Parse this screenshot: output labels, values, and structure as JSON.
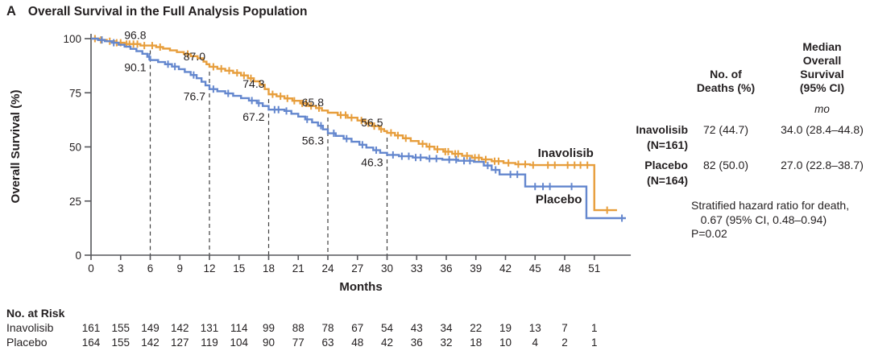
{
  "title": {
    "panel": "A",
    "text": "Overall Survival in the Full Analysis Population"
  },
  "chart_data": {
    "type": "line",
    "subtype": "kaplan-meier-step",
    "xlabel": "Months",
    "ylabel": "Overall Survival (%)",
    "xlim": [
      0,
      54.7
    ],
    "ylim": [
      0,
      100
    ],
    "xticks": [
      0,
      3,
      6,
      9,
      12,
      15,
      18,
      21,
      24,
      27,
      30,
      33,
      36,
      39,
      42,
      45,
      48,
      51
    ],
    "yticks": [
      0,
      25,
      50,
      75,
      100
    ],
    "grid": false,
    "dashed_line_color": "#3f3f3f",
    "axis_color": "#55565a",
    "milestones": [
      {
        "month": 6,
        "inavolisib": "96.8",
        "placebo": "90.1"
      },
      {
        "month": 12,
        "inavolisib": "87.0",
        "placebo": "76.7"
      },
      {
        "month": 18,
        "inavolisib": "74.3",
        "placebo": "67.2"
      },
      {
        "month": 24,
        "inavolisib": "65.8",
        "placebo": "56.3"
      },
      {
        "month": 30,
        "inavolisib": "56.5",
        "placebo": "46.3"
      }
    ],
    "series": [
      {
        "name": "Inavolisib",
        "color": "#e79e3c",
        "steps": [
          [
            0,
            100
          ],
          [
            0.8,
            99.4
          ],
          [
            1.6,
            98.8
          ],
          [
            2.4,
            98.1
          ],
          [
            3.4,
            97.5
          ],
          [
            5,
            96.8
          ],
          [
            6.6,
            96.1
          ],
          [
            7.3,
            95.4
          ],
          [
            8,
            94.6
          ],
          [
            8.7,
            93.8
          ],
          [
            9.4,
            92.9
          ],
          [
            10.1,
            91.9
          ],
          [
            10.8,
            90.9
          ],
          [
            11.4,
            89.4
          ],
          [
            11.7,
            88.2
          ],
          [
            12,
            87
          ],
          [
            12.8,
            86.1
          ],
          [
            13.6,
            85.2
          ],
          [
            14.4,
            84.2
          ],
          [
            15.2,
            83
          ],
          [
            15.9,
            81.7
          ],
          [
            16.5,
            80.3
          ],
          [
            17.1,
            78.7
          ],
          [
            17.6,
            76.7
          ],
          [
            18,
            74.3
          ],
          [
            18.8,
            73.4
          ],
          [
            19.6,
            72.4
          ],
          [
            20.4,
            71.3
          ],
          [
            21.2,
            70.1
          ],
          [
            22,
            68.9
          ],
          [
            22.8,
            67.9
          ],
          [
            23.4,
            66.8
          ],
          [
            24,
            65.8
          ],
          [
            25,
            64.7
          ],
          [
            26,
            63.5
          ],
          [
            27,
            62.2
          ],
          [
            27.8,
            60.9
          ],
          [
            28.5,
            59.6
          ],
          [
            29.2,
            58.2
          ],
          [
            29.7,
            57.3
          ],
          [
            30,
            56.5
          ],
          [
            30.8,
            55.3
          ],
          [
            31.6,
            54
          ],
          [
            32.4,
            52.7
          ],
          [
            33.2,
            51.4
          ],
          [
            34,
            50.1
          ],
          [
            34.8,
            48.9
          ],
          [
            35.7,
            47.8
          ],
          [
            36.6,
            46.8
          ],
          [
            37.6,
            45.9
          ],
          [
            38.6,
            45
          ],
          [
            39.6,
            44.2
          ],
          [
            40.6,
            43.4
          ],
          [
            41.8,
            42.6
          ],
          [
            43,
            42
          ],
          [
            44.5,
            41.6
          ],
          [
            51,
            20.8
          ],
          [
            53.3,
            20.8
          ]
        ],
        "censors": [
          0.4,
          1,
          1.9,
          2.6,
          3,
          3.6,
          3.9,
          4.3,
          4.7,
          5.4,
          6.2,
          7,
          9.8,
          12.4,
          13.2,
          14,
          14.8,
          15.5,
          16.2,
          18.4,
          19.2,
          19.9,
          20.6,
          21.4,
          21.8,
          22.3,
          23.1,
          25.3,
          25.8,
          26.4,
          27.4,
          28.1,
          28.7,
          29.4,
          30.4,
          31.1,
          31.9,
          33.6,
          34.3,
          35.1,
          35.9,
          36.2,
          36.9,
          37.2,
          38.1,
          38.9,
          39.3,
          40,
          40.9,
          41.3,
          42.3,
          43.3,
          44,
          44.8,
          46.3,
          47,
          48.3,
          49,
          49.6,
          50.3,
          52.3
        ]
      },
      {
        "name": "Placebo",
        "color": "#6487ce",
        "steps": [
          [
            0,
            100
          ],
          [
            0.7,
            99.4
          ],
          [
            1.4,
            98.8
          ],
          [
            2.1,
            98.1
          ],
          [
            2.8,
            97.2
          ],
          [
            3.4,
            96.3
          ],
          [
            4,
            95.3
          ],
          [
            4.6,
            94.2
          ],
          [
            5.2,
            93
          ],
          [
            5.7,
            91.6
          ],
          [
            6,
            90.1
          ],
          [
            6.8,
            89.2
          ],
          [
            7.5,
            88.2
          ],
          [
            8.2,
            87.1
          ],
          [
            8.9,
            85.9
          ],
          [
            9.5,
            84.6
          ],
          [
            10.1,
            83.2
          ],
          [
            10.7,
            81.7
          ],
          [
            11.2,
            80.1
          ],
          [
            11.6,
            78.4
          ],
          [
            12,
            76.7
          ],
          [
            12.8,
            75.7
          ],
          [
            13.6,
            74.7
          ],
          [
            14.4,
            73.6
          ],
          [
            15.2,
            72.5
          ],
          [
            16,
            71.4
          ],
          [
            16.8,
            70.2
          ],
          [
            17.4,
            68.9
          ],
          [
            18,
            67.2
          ],
          [
            19.6,
            66.6
          ],
          [
            20.3,
            65.3
          ],
          [
            21,
            64
          ],
          [
            21.7,
            62.7
          ],
          [
            22.4,
            61.3
          ],
          [
            23,
            59.8
          ],
          [
            23.5,
            58.1
          ],
          [
            24,
            56.3
          ],
          [
            24.8,
            55.1
          ],
          [
            25.6,
            53.8
          ],
          [
            26.4,
            52.4
          ],
          [
            27.2,
            51
          ],
          [
            27.9,
            49.7
          ],
          [
            28.6,
            48.5
          ],
          [
            29.3,
            47.3
          ],
          [
            30,
            46.3
          ],
          [
            31.2,
            45.7
          ],
          [
            32.6,
            45.1
          ],
          [
            34,
            44.6
          ],
          [
            35.6,
            44.1
          ],
          [
            37.2,
            43.6
          ],
          [
            38.8,
            43.1
          ],
          [
            39.8,
            41.4
          ],
          [
            40.6,
            39.4
          ],
          [
            41.4,
            37.3
          ],
          [
            44,
            31.7
          ],
          [
            50.2,
            17.1
          ],
          [
            54.2,
            17.1
          ]
        ],
        "censors": [
          1.1,
          2.3,
          5.9,
          7.8,
          8.5,
          10.4,
          12.4,
          13.9,
          16.3,
          17,
          18.6,
          19,
          19.8,
          21.9,
          23.3,
          24.6,
          25.9,
          27.5,
          28.9,
          30.6,
          31.5,
          32.2,
          32.9,
          33.4,
          34.3,
          35,
          36.3,
          37,
          37.8,
          38.4,
          40.2,
          41,
          42.5,
          43.2,
          45,
          45.8,
          46.5,
          48.7,
          53.8
        ]
      }
    ],
    "risk_table": {
      "title": "No. at Risk",
      "months": [
        0,
        3,
        6,
        9,
        12,
        15,
        18,
        21,
        24,
        27,
        30,
        33,
        36,
        39,
        42,
        45,
        48,
        51
      ],
      "rows": [
        {
          "name": "Inavolisib",
          "values": [
            161,
            155,
            149,
            142,
            131,
            114,
            99,
            88,
            78,
            67,
            54,
            43,
            34,
            22,
            19,
            13,
            7,
            1
          ]
        },
        {
          "name": "Placebo",
          "values": [
            164,
            155,
            142,
            127,
            119,
            104,
            90,
            77,
            63,
            48,
            42,
            36,
            32,
            18,
            10,
            4,
            2,
            1
          ]
        }
      ]
    }
  },
  "summary": {
    "deaths_header": "No. of\nDeaths (%)",
    "median_header": "Median\nOverall\nSurvival\n(95% CI)",
    "unit": "mo",
    "rows": [
      {
        "label": "Inavolisib\n(N=161)",
        "deaths": "72 (44.7)",
        "median": "34.0 (28.4–44.8)"
      },
      {
        "label": "Placebo\n(N=164)",
        "deaths": "82 (50.0)",
        "median": "27.0 (22.8–38.7)"
      }
    ],
    "hazard_note": "Stratified hazard ratio for death,\n   0.67 (95% CI, 0.48–0.94)\nP=0.02"
  }
}
